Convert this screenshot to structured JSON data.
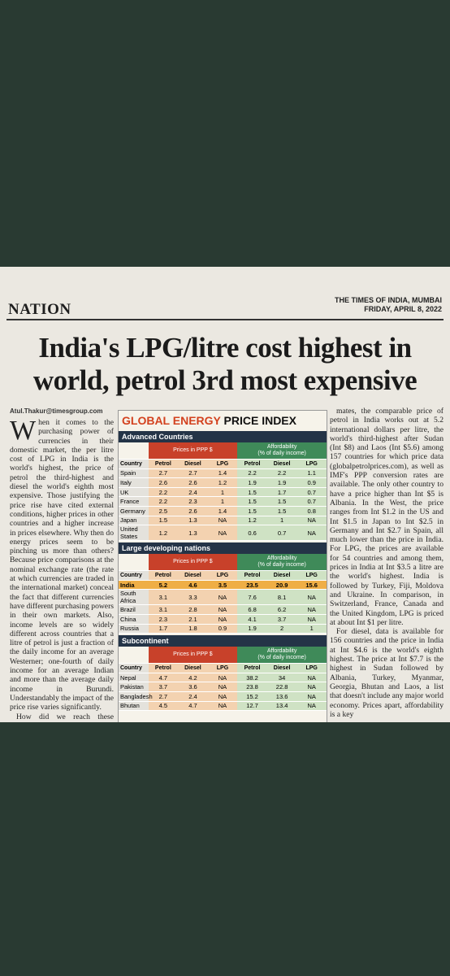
{
  "header": {
    "section": "NATION",
    "paper": "THE TIMES OF INDIA, MUMBAI",
    "date": "FRIDAY, APRIL 8, 2022"
  },
  "headline": [
    "India's LPG/litre cost highest in",
    "world, petrol 3rd most expensive"
  ],
  "byline": "Atul.Thakur@timesgroup.com",
  "left_column": [
    "When it comes to the purchasing power of currencies in their domestic market, the per litre cost of LPG in India is the world's highest, the price of petrol the third-highest and diesel the world's eighth most expensive. Those justifying the price rise have cited external conditions, higher prices in other countries and a higher increase in prices elsewhere. Why then do energy prices seem to be pinching us more than others? Because price comparisons at the nominal exchange rate (the rate at which currencies are traded in the international market) conceal the fact that different currencies have different purchasing powers in their own markets. Also, income levels are so widely different across countries that a litre of petrol is just a fraction of the daily income for an average Westerner; one-fourth of daily income for an average Indian and more than the average daily income in Burundi. Understandably the impact of the price rise varies significantly.",
    "How did we reach these numbers? The price of petrol"
  ],
  "table": {
    "title_part1": "GLOBAL ENERGY",
    "title_part2": "PRICE INDEX",
    "sections": [
      {
        "name": "Advanced Countries",
        "group_headers": [
          {
            "title": "Prices in PPP $"
          },
          {
            "title": "Affordability",
            "subtitle": "(% of daily income)"
          }
        ],
        "columns": [
          "Country",
          "Petrol",
          "Diesel",
          "LPG",
          "Petrol",
          "Diesel",
          "LPG"
        ],
        "rows": [
          {
            "country": "Spain",
            "values": [
              2.7,
              2.7,
              1.4,
              2.2,
              2.2,
              1.1
            ]
          },
          {
            "country": "Italy",
            "values": [
              2.6,
              2.6,
              1.2,
              1.9,
              1.9,
              0.9
            ]
          },
          {
            "country": "UK",
            "values": [
              2.2,
              2.4,
              1,
              1.5,
              1.7,
              0.7
            ]
          },
          {
            "country": "France",
            "values": [
              2.2,
              2.3,
              1,
              1.5,
              1.5,
              0.7
            ]
          },
          {
            "country": "Germany",
            "values": [
              2.5,
              2.6,
              1.4,
              1.5,
              1.5,
              0.8
            ]
          },
          {
            "country": "Japan",
            "values": [
              1.5,
              1.3,
              "NA",
              1.2,
              1,
              "NA"
            ]
          },
          {
            "country": "United States",
            "values": [
              1.2,
              1.3,
              "NA",
              0.6,
              0.7,
              "NA"
            ]
          }
        ]
      },
      {
        "name": "Large developing nations",
        "group_headers": [
          {
            "title": "Prices in PPP $"
          },
          {
            "title": "Affordability",
            "subtitle": "(% of daily income)"
          }
        ],
        "columns": [
          "Country",
          "Petrol",
          "Diesel",
          "LPG",
          "Petrol",
          "Diesel",
          "LPG"
        ],
        "rows": [
          {
            "country": "India",
            "values": [
              5.2,
              4.6,
              3.5,
              23.5,
              20.9,
              15.6
            ],
            "highlight": true
          },
          {
            "country": "South Africa",
            "values": [
              3.1,
              3.3,
              "NA",
              7.6,
              8.1,
              "NA"
            ]
          },
          {
            "country": "Brazil",
            "values": [
              3.1,
              2.8,
              "NA",
              6.8,
              6.2,
              "NA"
            ]
          },
          {
            "country": "China",
            "values": [
              2.3,
              2.1,
              "NA",
              4.1,
              3.7,
              "NA"
            ]
          },
          {
            "country": "Russia",
            "values": [
              1.7,
              1.8,
              0.9,
              1.9,
              2,
              1
            ]
          }
        ]
      },
      {
        "name": "Subcontinent",
        "group_headers": [
          {
            "title": "Prices in PPP $"
          },
          {
            "title": "Affordability",
            "subtitle": "(% of daily income)"
          }
        ],
        "columns": [
          "Country",
          "Petrol",
          "Diesel",
          "LPG",
          "Petrol",
          "Diesel",
          "LPG"
        ],
        "rows": [
          {
            "country": "Nepal",
            "values": [
              4.7,
              4.2,
              "NA",
              38.2,
              34,
              "NA"
            ]
          },
          {
            "country": "Pakistan",
            "values": [
              3.7,
              3.6,
              "NA",
              23.8,
              22.8,
              "NA"
            ]
          },
          {
            "country": "Bangladesh",
            "values": [
              2.7,
              2.4,
              "NA",
              15.2,
              13.6,
              "NA"
            ]
          },
          {
            "country": "Bhutan",
            "values": [
              4.5,
              4.7,
              "NA",
              12.7,
              13.4,
              "NA"
            ]
          }
        ]
      }
    ]
  },
  "right_column": [
    "mates, the comparable price of petrol in India works out at 5.2 international dollars per litre, the world's third-highest after Sudan (Int $8) and Laos (Int $5.6) among 157 countries for which price data (globalpetrolprices.com), as well as IMF's PPP conversion rates are available. The only other country to have a price higher than Int $5 is Albania. In the West, the price ranges from Int $1.2 in the US and Int $1.5 in Japan to Int $2.5 in Germany and Int $2.7 in Spain, all much lower than the price in India. For LPG, the prices are available for 54 countries and among them, prices in India at Int $3.5 a litre are the world's highest. India is followed by Turkey, Fiji, Moldova and Ukraine. In comparison, in Switzerland, France, Canada and the United Kingdom, LPG is priced at about Int $1 per litre.",
    "For diesel, data is available for 156 countries and the price in India at Int $4.6 is the world's eighth highest. The price at Int $7.7 is the highest in Sudan followed by Albania, Turkey, Myanmar, Georgia, Bhutan and Laos, a list that doesn't include any major world economy. Prices apart, affordability is a key"
  ]
}
